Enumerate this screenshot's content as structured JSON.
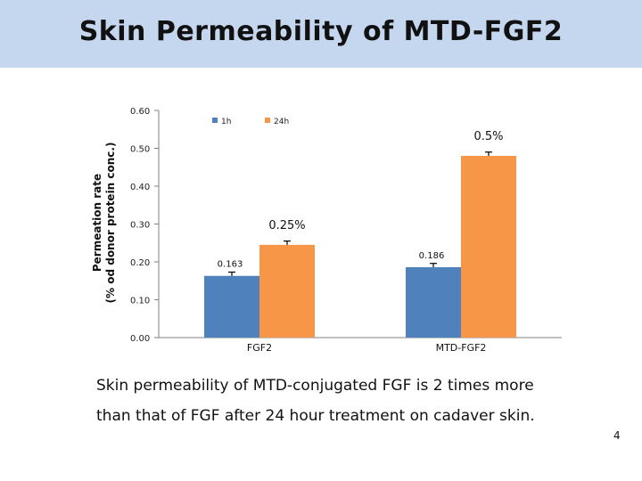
{
  "slide": {
    "title": "Skin Permeability of MTD-FGF2",
    "caption_line1": "Skin permeability of MTD-conjugated FGF is 2 times more",
    "caption_line2": "than that of FGF after 24 hour treatment on cadaver skin.",
    "page_number": "4"
  },
  "chart_data": {
    "type": "bar",
    "title": "",
    "xlabel": "",
    "ylabel_line1": "Permeation rate",
    "ylabel_line2": "(% od donor protein conc.)",
    "ylim": [
      0,
      0.6
    ],
    "yticks": [
      0.0,
      0.1,
      0.2,
      0.3,
      0.4,
      0.5,
      0.6
    ],
    "ytick_labels": [
      "0.00",
      "0.10",
      "0.20",
      "0.30",
      "0.40",
      "0.50",
      "0.60"
    ],
    "categories": [
      "FGF2",
      "MTD-FGF2"
    ],
    "series": [
      {
        "name": "1h",
        "color": "#4f81bd",
        "values": [
          0.163,
          0.186
        ],
        "errors": [
          0.01,
          0.01
        ],
        "labels": [
          "0.163",
          "0.186"
        ]
      },
      {
        "name": "24h",
        "color": "#f79646",
        "values": [
          0.245,
          0.48
        ],
        "errors": [
          0.01,
          0.01
        ],
        "labels": [
          "0.25%",
          "0.5%"
        ]
      }
    ],
    "legend_position": "top-center"
  }
}
